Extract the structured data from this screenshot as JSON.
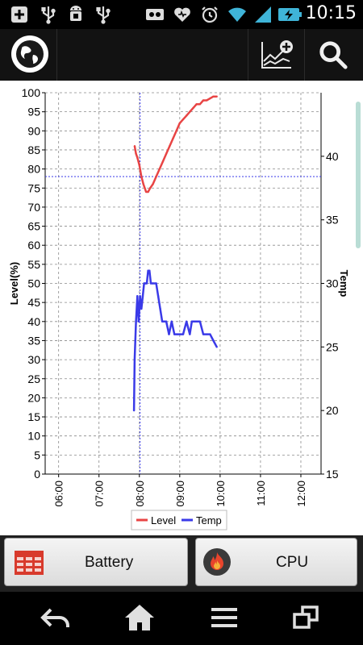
{
  "status_bar": {
    "time": "10:15",
    "left_icons": [
      "add-icon",
      "usb-icon",
      "android-debug-icon",
      "usb-icon"
    ],
    "right_icons": [
      "voicemail-icon",
      "heart-icon",
      "alarm-icon",
      "wifi-icon",
      "signal-icon",
      "battery-charging-icon"
    ]
  },
  "action_bar": {
    "icons": [
      "globe-icon",
      "add-chart-icon",
      "search-icon"
    ]
  },
  "chart_data": {
    "type": "line",
    "xlabel": "",
    "x_ticks": [
      "06:00",
      "07:00",
      "08:00",
      "09:00",
      "10:00",
      "11:00",
      "12:00"
    ],
    "x_range": [
      "05:40",
      "12:30"
    ],
    "ylabel_left": "Level(%)",
    "ylim_left": [
      0,
      100
    ],
    "y_ticks_left": [
      "0",
      "5",
      "10",
      "15",
      "20",
      "25",
      "30",
      "35",
      "40",
      "45",
      "50",
      "55",
      "60",
      "65",
      "70",
      "75",
      "80",
      "85",
      "90",
      "95",
      "100"
    ],
    "ylabel_right": "Temp",
    "ylim_right": [
      15,
      45
    ],
    "y_ticks_right": [
      "15",
      "20",
      "25",
      "30",
      "35",
      "40"
    ],
    "grid": true,
    "legend_position": "bottom",
    "crosshair": {
      "x": "08:01",
      "y_left": 78
    },
    "series": [
      {
        "name": "Level",
        "axis": "left",
        "color": "#e84444",
        "x": [
          "07:53",
          "07:55",
          "07:57",
          "08:00",
          "08:03",
          "08:06",
          "08:10",
          "08:13",
          "08:16",
          "08:20",
          "08:25",
          "08:30",
          "08:35",
          "08:40",
          "08:45",
          "08:50",
          "08:55",
          "09:00",
          "09:05",
          "09:10",
          "09:15",
          "09:20",
          "09:25",
          "09:30",
          "09:35",
          "09:40",
          "09:45",
          "09:50",
          "09:55"
        ],
        "y": [
          86,
          84,
          83,
          81,
          78,
          76,
          74,
          74,
          75,
          76,
          78,
          80,
          82,
          84,
          86,
          88,
          90,
          92,
          93,
          94,
          95,
          96,
          97,
          97,
          98,
          98,
          98.5,
          99,
          99
        ]
      },
      {
        "name": "Temp",
        "axis": "right",
        "color": "#3a3ae8",
        "x": [
          "07:52",
          "07:53",
          "07:55",
          "07:57",
          "07:59",
          "08:00",
          "08:01",
          "08:03",
          "08:05",
          "08:07",
          "08:09",
          "08:11",
          "08:13",
          "08:15",
          "08:17",
          "08:20",
          "08:25",
          "08:28",
          "08:31",
          "08:34",
          "08:37",
          "08:40",
          "08:44",
          "08:48",
          "08:52",
          "08:56",
          "09:00",
          "09:05",
          "09:10",
          "09:15",
          "09:18",
          "09:22",
          "09:26",
          "09:30",
          "09:35",
          "09:40",
          "09:45",
          "09:50",
          "09:55"
        ],
        "y": [
          20,
          24,
          27,
          29,
          27,
          28,
          29,
          28,
          29,
          30,
          30,
          30,
          31,
          31,
          30,
          30,
          30,
          29,
          28,
          27,
          27,
          27,
          26,
          27,
          26,
          26,
          26,
          26,
          27,
          26,
          27,
          27,
          27,
          27,
          26,
          26,
          26,
          25.5,
          25
        ]
      }
    ]
  },
  "tabs": [
    {
      "label": "Battery",
      "icon": "battery-table-icon"
    },
    {
      "label": "CPU",
      "icon": "cpu-flame-icon"
    }
  ],
  "nav_bar": {
    "icons": [
      "back-icon",
      "home-icon",
      "menu-icon",
      "recent-apps-icon"
    ]
  }
}
